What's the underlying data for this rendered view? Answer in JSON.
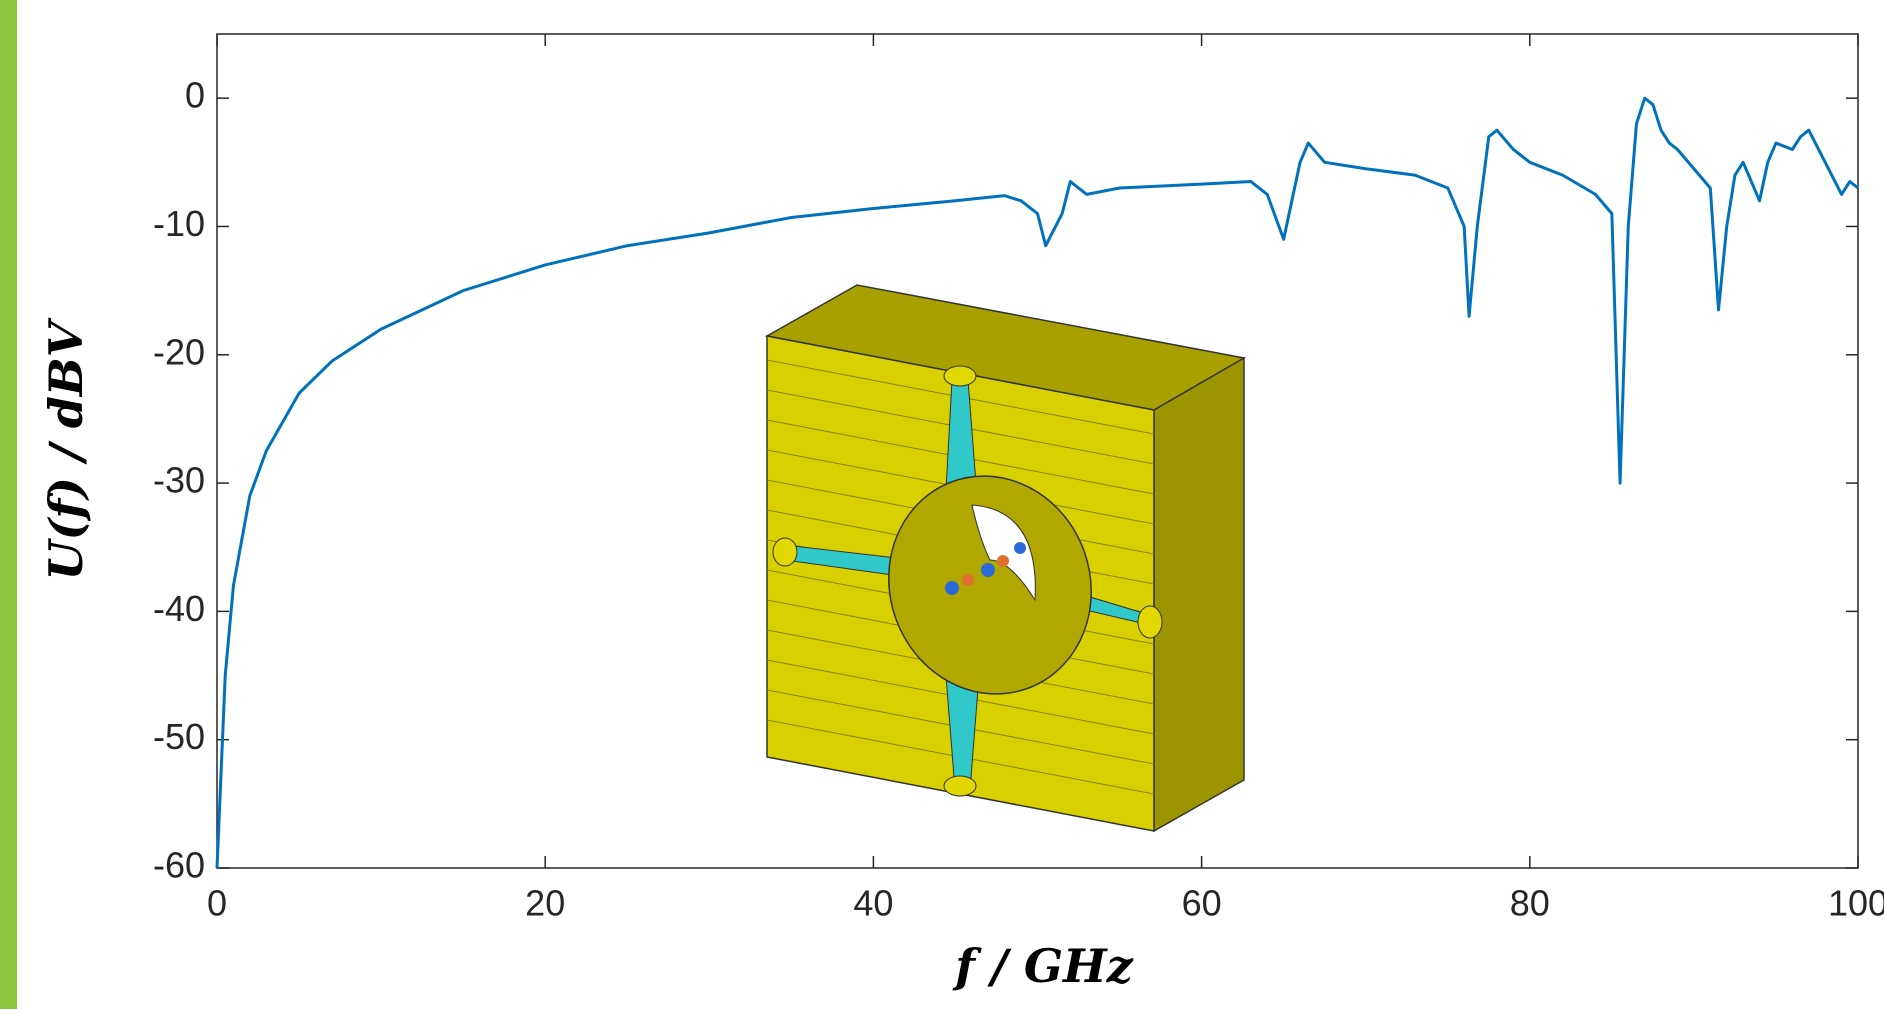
{
  "chart_data": {
    "type": "line",
    "xlabel": "f / GHz",
    "ylabel": "U(f) / dBV",
    "xlim": [
      0,
      100
    ],
    "ylim": [
      -60,
      5
    ],
    "xticks": [
      0,
      20,
      40,
      60,
      80,
      100
    ],
    "yticks": [
      -60,
      -50,
      -40,
      -30,
      -20,
      -10,
      0
    ],
    "grid": false,
    "x": [
      0,
      0.5,
      1,
      2,
      3,
      5,
      7,
      10,
      15,
      20,
      25,
      30,
      35,
      40,
      45,
      48,
      49,
      50,
      50.5,
      51.5,
      52,
      53,
      55,
      60,
      63,
      64,
      65,
      65.5,
      66,
      66.5,
      67.5,
      70,
      73,
      75,
      76,
      76.3,
      76.8,
      77.5,
      78,
      79,
      80,
      82,
      84,
      85,
      85.5,
      86,
      86.5,
      87,
      87.5,
      88,
      88.5,
      89,
      90,
      91,
      91.5,
      92,
      92.5,
      93,
      93.5,
      94,
      94.5,
      95,
      96,
      96.5,
      97,
      98,
      99,
      99.5,
      100
    ],
    "series": [
      {
        "color": "#0072bd",
        "values": [
          -60,
          -45,
          -38,
          -31,
          -27.5,
          -23,
          -20.5,
          -18,
          -15,
          -13,
          -11.5,
          -10.5,
          -9.3,
          -8.6,
          -8,
          -7.6,
          -8,
          -9,
          -11.5,
          -9,
          -6.5,
          -7.5,
          -7,
          -6.7,
          -6.5,
          -7.5,
          -11,
          -8,
          -5,
          -3.5,
          -5,
          -5.5,
          -6,
          -7,
          -10,
          -17,
          -10,
          -3,
          -2.5,
          -4,
          -5,
          -6,
          -7.5,
          -9,
          -30,
          -10,
          -2,
          0,
          -0.5,
          -2.5,
          -3.5,
          -4,
          -5.5,
          -7,
          -16.5,
          -10,
          -6,
          -5,
          -6.5,
          -8,
          -5,
          -3.5,
          -4,
          -3,
          -2.5,
          -5,
          -7.5,
          -6.5,
          -7
        ]
      }
    ]
  }
}
